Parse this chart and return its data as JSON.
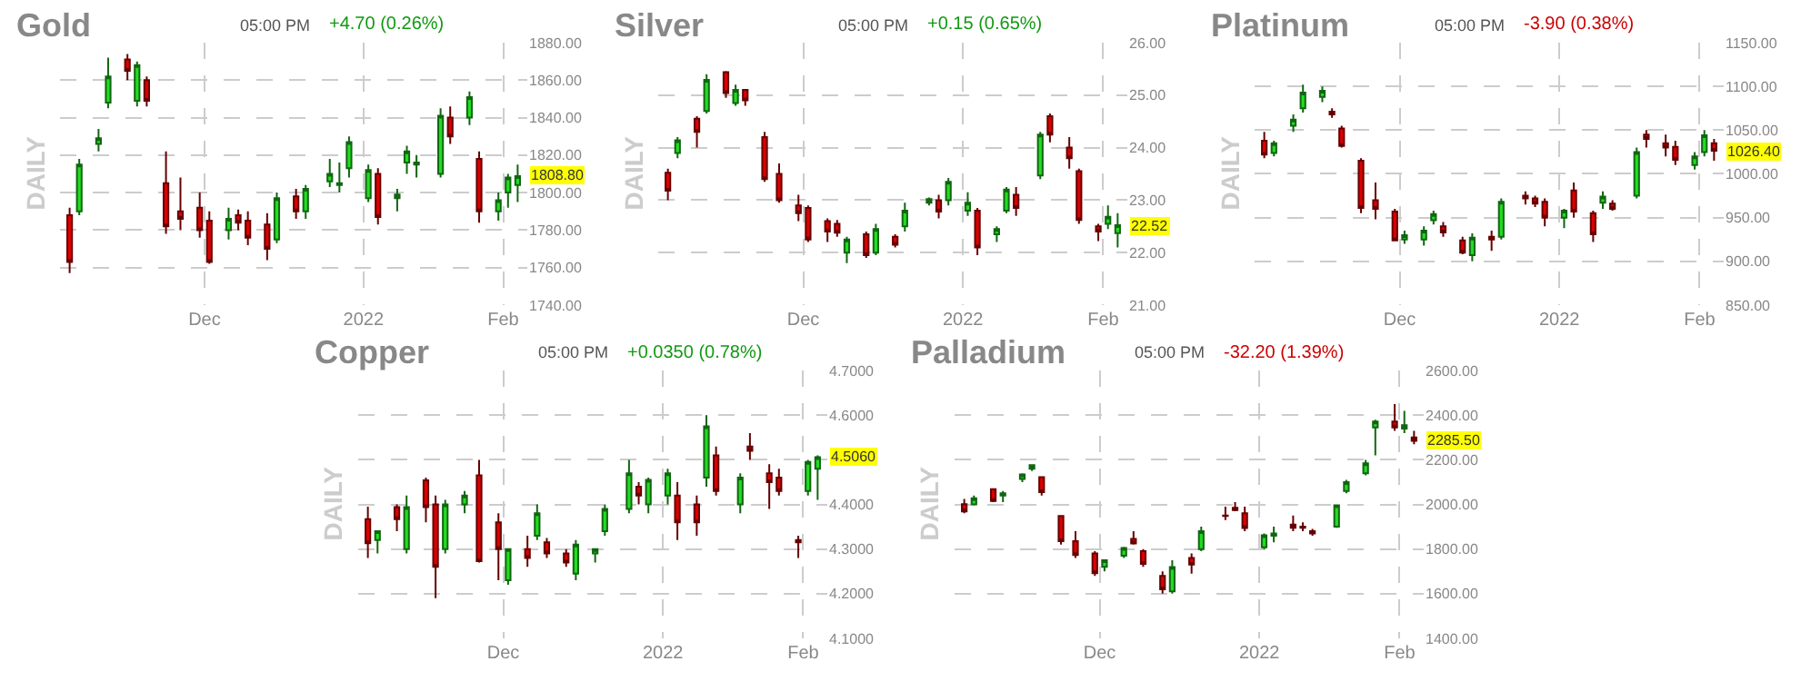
{
  "chart_data": [
    {
      "type": "candlestick",
      "title": "Gold",
      "ylabel": "DAILY",
      "grid": true,
      "annotations": [
        "05:00 PM",
        "+4.70 (0.26%)",
        {
          "text": "1808.80",
          "y": 1808.8
        }
      ],
      "x": [
        "2021-11-03",
        "2021-11-05",
        "2021-11-09",
        "2021-11-11",
        "2021-11-15",
        "2021-11-17",
        "2021-11-19",
        "2021-11-23",
        "2021-11-26",
        "2021-11-30",
        "2021-12-02",
        "2021-12-06",
        "2021-12-08",
        "2021-12-10",
        "2021-12-14",
        "2021-12-16",
        "2021-12-20",
        "2021-12-22",
        "2021-12-27",
        "2021-12-29",
        "2021-12-31",
        "2022-01-04",
        "2022-01-06",
        "2022-01-10",
        "2022-01-12",
        "2022-01-14",
        "2022-01-19",
        "2022-01-21",
        "2022-01-25",
        "2022-01-27",
        "2022-01-31",
        "2022-02-02",
        "2022-02-04"
      ],
      "xlim": [
        "2021-11-01",
        "2022-02-06"
      ],
      "xticks": [
        {
          "value": "2021-12-01",
          "label": "Dec"
        },
        {
          "value": "2022-01-03",
          "label": "2022"
        },
        {
          "value": "2022-02-01",
          "label": "Feb"
        }
      ],
      "ylim": [
        1740,
        1880
      ],
      "yticks": [
        {
          "value": 1740,
          "label": "1740.00"
        },
        {
          "value": 1760,
          "label": "1760.00"
        },
        {
          "value": 1780,
          "label": "1780.00"
        },
        {
          "value": 1800,
          "label": "1800.00"
        },
        {
          "value": 1820,
          "label": "1820.00"
        },
        {
          "value": 1840,
          "label": "1840.00"
        },
        {
          "value": 1860,
          "label": "1860.00"
        },
        {
          "value": 1880,
          "label": "1880.00"
        }
      ],
      "ohlc": [
        [
          1788,
          1792,
          1757,
          1763
        ],
        [
          1790,
          1818,
          1788,
          1815
        ],
        [
          1826,
          1834,
          1822,
          1829
        ],
        [
          1848,
          1872,
          1845,
          1862
        ],
        [
          1871,
          1874,
          1860,
          1865
        ],
        [
          1849,
          1870,
          1846,
          1868
        ],
        [
          1860,
          1862,
          1846,
          1849
        ],
        [
          1805,
          1822,
          1778,
          1782
        ],
        [
          1790,
          1808,
          1780,
          1786
        ],
        [
          1792,
          1800,
          1776,
          1780
        ],
        [
          1785,
          1790,
          1762,
          1763
        ],
        [
          1780,
          1792,
          1775,
          1786
        ],
        [
          1788,
          1791,
          1780,
          1784
        ],
        [
          1785,
          1790,
          1772,
          1776
        ],
        [
          1783,
          1789,
          1764,
          1770
        ],
        [
          1775,
          1800,
          1773,
          1797
        ],
        [
          1798,
          1802,
          1786,
          1790
        ],
        [
          1790,
          1804,
          1786,
          1802
        ],
        [
          1806,
          1818,
          1803,
          1810
        ],
        [
          1804,
          1816,
          1800,
          1805
        ],
        [
          1813,
          1830,
          1808,
          1827
        ],
        [
          1797,
          1815,
          1795,
          1812
        ],
        [
          1810,
          1813,
          1783,
          1787
        ],
        [
          1797,
          1802,
          1790,
          1799
        ],
        [
          1816,
          1825,
          1810,
          1822
        ],
        [
          1815,
          1820,
          1808,
          1816
        ],
        [
          1810,
          1845,
          1808,
          1841
        ],
        [
          1840,
          1846,
          1826,
          1830
        ],
        [
          1840,
          1854,
          1836,
          1851
        ],
        [
          1818,
          1822,
          1784,
          1790
        ],
        [
          1790,
          1800,
          1785,
          1796
        ],
        [
          1800,
          1810,
          1792,
          1808
        ],
        [
          1804,
          1815,
          1795,
          1808.8
        ]
      ]
    },
    {
      "type": "candlestick",
      "title": "Silver",
      "ylabel": "DAILY",
      "grid": true,
      "annotations": [
        "05:00 PM",
        "+0.15 (0.65%)",
        {
          "text": "22.52",
          "y": 22.52
        }
      ],
      "x": [
        "2021-11-03",
        "2021-11-05",
        "2021-11-09",
        "2021-11-11",
        "2021-11-15",
        "2021-11-17",
        "2021-11-19",
        "2021-11-23",
        "2021-11-26",
        "2021-11-30",
        "2021-12-02",
        "2021-12-06",
        "2021-12-08",
        "2021-12-10",
        "2021-12-14",
        "2021-12-16",
        "2021-12-20",
        "2021-12-22",
        "2021-12-27",
        "2021-12-29",
        "2021-12-31",
        "2022-01-04",
        "2022-01-06",
        "2022-01-10",
        "2022-01-12",
        "2022-01-14",
        "2022-01-19",
        "2022-01-21",
        "2022-01-25",
        "2022-01-27",
        "2022-01-31",
        "2022-02-02",
        "2022-02-04"
      ],
      "xlim": [
        "2021-11-01",
        "2022-02-06"
      ],
      "xticks": [
        {
          "value": "2021-12-01",
          "label": "Dec"
        },
        {
          "value": "2022-01-03",
          "label": "2022"
        },
        {
          "value": "2022-02-01",
          "label": "Feb"
        }
      ],
      "ylim": [
        21,
        26
      ],
      "yticks": [
        {
          "value": 21,
          "label": "21.00"
        },
        {
          "value": 22,
          "label": "22.00"
        },
        {
          "value": 23,
          "label": "23.00"
        },
        {
          "value": 24,
          "label": "24.00"
        },
        {
          "value": 25,
          "label": "25.00"
        },
        {
          "value": 26,
          "label": "26.00"
        }
      ],
      "ohlc": [
        [
          23.52,
          23.6,
          23.0,
          23.18
        ],
        [
          23.9,
          24.2,
          23.8,
          24.14
        ],
        [
          24.55,
          24.6,
          24.0,
          24.3
        ],
        [
          24.7,
          25.4,
          24.65,
          25.29
        ],
        [
          25.44,
          25.46,
          24.95,
          25.04
        ],
        [
          24.85,
          25.2,
          24.8,
          25.1
        ],
        [
          25.1,
          25.12,
          24.8,
          24.9
        ],
        [
          24.2,
          24.3,
          23.35,
          23.4
        ],
        [
          23.5,
          23.7,
          22.95,
          23.0
        ],
        [
          22.9,
          23.1,
          22.6,
          22.75
        ],
        [
          22.85,
          22.9,
          22.2,
          22.25
        ],
        [
          22.6,
          22.65,
          22.2,
          22.4
        ],
        [
          22.55,
          22.62,
          22.3,
          22.38
        ],
        [
          22.0,
          22.3,
          21.8,
          22.25
        ],
        [
          22.35,
          22.4,
          21.9,
          21.95
        ],
        [
          22.0,
          22.55,
          21.95,
          22.45
        ],
        [
          22.3,
          22.35,
          22.1,
          22.15
        ],
        [
          22.5,
          22.95,
          22.4,
          22.8
        ],
        [
          22.95,
          23.05,
          22.9,
          23.02
        ],
        [
          23.0,
          23.1,
          22.65,
          22.78
        ],
        [
          23.0,
          23.42,
          22.9,
          23.35
        ],
        [
          22.8,
          23.15,
          22.7,
          22.95
        ],
        [
          22.8,
          22.85,
          21.95,
          22.1
        ],
        [
          22.35,
          22.5,
          22.2,
          22.45
        ],
        [
          22.8,
          23.25,
          22.75,
          23.2
        ],
        [
          23.1,
          23.25,
          22.7,
          22.85
        ],
        [
          23.47,
          24.3,
          23.4,
          24.25
        ],
        [
          24.6,
          24.65,
          24.1,
          24.25
        ],
        [
          24.0,
          24.2,
          23.6,
          23.8
        ],
        [
          23.55,
          23.6,
          22.55,
          22.62
        ],
        [
          22.5,
          22.55,
          22.22,
          22.4
        ],
        [
          22.55,
          22.9,
          22.45,
          22.68
        ],
        [
          22.37,
          22.75,
          22.1,
          22.52
        ]
      ]
    },
    {
      "type": "candlestick",
      "title": "Platinum",
      "ylabel": "DAILY",
      "grid": true,
      "annotations": [
        "05:00 PM",
        "-3.90 (0.38%)",
        {
          "text": "1026.40",
          "y": 1026.4
        }
      ],
      "x": [
        "2021-11-03",
        "2021-11-05",
        "2021-11-09",
        "2021-11-11",
        "2021-11-15",
        "2021-11-17",
        "2021-11-19",
        "2021-11-23",
        "2021-11-26",
        "2021-11-30",
        "2021-12-02",
        "2021-12-06",
        "2021-12-08",
        "2021-12-10",
        "2021-12-14",
        "2021-12-16",
        "2021-12-20",
        "2021-12-22",
        "2021-12-27",
        "2021-12-29",
        "2021-12-31",
        "2022-01-04",
        "2022-01-06",
        "2022-01-10",
        "2022-01-12",
        "2022-01-14",
        "2022-01-19",
        "2022-01-21",
        "2022-01-25",
        "2022-01-27",
        "2022-01-31",
        "2022-02-02",
        "2022-02-04"
      ],
      "xlim": [
        "2021-11-01",
        "2022-02-06"
      ],
      "xticks": [
        {
          "value": "2021-12-01",
          "label": "Dec"
        },
        {
          "value": "2022-01-03",
          "label": "2022"
        },
        {
          "value": "2022-02-01",
          "label": "Feb"
        }
      ],
      "ylim": [
        850,
        1150
      ],
      "yticks": [
        {
          "value": 850,
          "label": "850.00"
        },
        {
          "value": 900,
          "label": "900.00"
        },
        {
          "value": 950,
          "label": "950.00"
        },
        {
          "value": 1000,
          "label": "1000.00"
        },
        {
          "value": 1050,
          "label": "1050.00"
        },
        {
          "value": 1100,
          "label": "1100.00"
        },
        {
          "value": 1150,
          "label": "1150.00"
        }
      ],
      "ohlc": [
        [
          1038,
          1048,
          1018,
          1022
        ],
        [
          1024,
          1038,
          1020,
          1035
        ],
        [
          1055,
          1068,
          1048,
          1062
        ],
        [
          1075,
          1102,
          1070,
          1093
        ],
        [
          1088,
          1100,
          1082,
          1095
        ],
        [
          1071,
          1075,
          1064,
          1068
        ],
        [
          1052,
          1055,
          1030,
          1032
        ],
        [
          1015,
          1018,
          955,
          961
        ],
        [
          970,
          990,
          948,
          960
        ],
        [
          957,
          960,
          923,
          924
        ],
        [
          925,
          935,
          920,
          930
        ],
        [
          925,
          940,
          918,
          935
        ],
        [
          947,
          958,
          942,
          954
        ],
        [
          940,
          945,
          928,
          933
        ],
        [
          924,
          928,
          908,
          910
        ],
        [
          907,
          932,
          900,
          927
        ],
        [
          928,
          935,
          912,
          925
        ],
        [
          928,
          972,
          925,
          968
        ],
        [
          975,
          980,
          965,
          972
        ],
        [
          972,
          975,
          962,
          966
        ],
        [
          968,
          972,
          940,
          950
        ],
        [
          950,
          960,
          938,
          958
        ],
        [
          981,
          990,
          950,
          957
        ],
        [
          955,
          958,
          922,
          931
        ],
        [
          967,
          980,
          960,
          974
        ],
        [
          966,
          970,
          958,
          960
        ],
        [
          975,
          1030,
          972,
          1025
        ],
        [
          1045,
          1050,
          1030,
          1040
        ],
        [
          1035,
          1045,
          1020,
          1030
        ],
        [
          1031,
          1038,
          1010,
          1016
        ],
        [
          1010,
          1025,
          1005,
          1020
        ],
        [
          1025,
          1050,
          1020,
          1044
        ],
        [
          1035,
          1040,
          1015,
          1026.4
        ]
      ]
    },
    {
      "type": "candlestick",
      "title": "Copper",
      "ylabel": "DAILY",
      "grid": true,
      "annotations": [
        "05:00 PM",
        "+0.0350 (0.78%)",
        {
          "text": "4.5060",
          "y": 4.506
        }
      ],
      "x": [
        "2021-11-03",
        "2021-11-05",
        "2021-11-09",
        "2021-11-11",
        "2021-11-15",
        "2021-11-17",
        "2021-11-19",
        "2021-11-23",
        "2021-11-26",
        "2021-11-30",
        "2021-12-02",
        "2021-12-06",
        "2021-12-08",
        "2021-12-10",
        "2021-12-14",
        "2021-12-16",
        "2021-12-20",
        "2021-12-22",
        "2021-12-27",
        "2021-12-29",
        "2021-12-31",
        "2022-01-04",
        "2022-01-06",
        "2022-01-10",
        "2022-01-12",
        "2022-01-14",
        "2022-01-19",
        "2022-01-21",
        "2022-01-25",
        "2022-01-27",
        "2022-01-31",
        "2022-02-02",
        "2022-02-04"
      ],
      "xlim": [
        "2021-11-01",
        "2022-02-06"
      ],
      "xticks": [
        {
          "value": "2021-12-01",
          "label": "Dec"
        },
        {
          "value": "2022-01-03",
          "label": "2022"
        },
        {
          "value": "2022-02-01",
          "label": "Feb"
        }
      ],
      "ylim": [
        4.1,
        4.7
      ],
      "yticks": [
        {
          "value": 4.1,
          "label": "4.1000"
        },
        {
          "value": 4.2,
          "label": "4.2000"
        },
        {
          "value": 4.3,
          "label": "4.3000"
        },
        {
          "value": 4.4,
          "label": "4.4000"
        },
        {
          "value": 4.5,
          "label": null
        },
        {
          "value": 4.6,
          "label": "4.6000"
        },
        {
          "value": 4.7,
          "label": "4.7000"
        }
      ],
      "ohlc": [
        [
          4.367,
          4.395,
          4.28,
          4.313
        ],
        [
          4.32,
          4.34,
          4.29,
          4.34
        ],
        [
          4.394,
          4.4,
          4.34,
          4.367
        ],
        [
          4.3,
          4.42,
          4.29,
          4.394
        ],
        [
          4.454,
          4.46,
          4.36,
          4.394
        ],
        [
          4.4,
          4.42,
          4.19,
          4.26
        ],
        [
          4.3,
          4.41,
          4.29,
          4.4
        ],
        [
          4.4,
          4.43,
          4.38,
          4.42
        ],
        [
          4.465,
          4.5,
          4.27,
          4.273
        ],
        [
          4.36,
          4.38,
          4.23,
          4.3
        ],
        [
          4.23,
          4.3,
          4.22,
          4.3
        ],
        [
          4.3,
          4.33,
          4.26,
          4.28
        ],
        [
          4.33,
          4.4,
          4.32,
          4.38
        ],
        [
          4.315,
          4.325,
          4.28,
          4.29
        ],
        [
          4.29,
          4.3,
          4.26,
          4.27
        ],
        [
          4.245,
          4.32,
          4.23,
          4.31
        ],
        [
          4.29,
          4.3,
          4.27,
          4.3
        ],
        [
          4.34,
          4.4,
          4.33,
          4.39
        ],
        [
          4.39,
          4.5,
          4.38,
          4.47
        ],
        [
          4.44,
          4.45,
          4.4,
          4.42
        ],
        [
          4.4,
          4.46,
          4.38,
          4.455
        ],
        [
          4.42,
          4.48,
          4.4,
          4.47
        ],
        [
          4.42,
          4.45,
          4.32,
          4.36
        ],
        [
          4.4,
          4.42,
          4.33,
          4.36
        ],
        [
          4.46,
          4.6,
          4.44,
          4.575
        ],
        [
          4.51,
          4.53,
          4.42,
          4.43
        ],
        [
          4.4,
          4.47,
          4.38,
          4.46
        ],
        [
          4.53,
          4.56,
          4.5,
          4.52
        ],
        [
          4.47,
          4.49,
          4.39,
          4.45
        ],
        [
          4.46,
          4.48,
          4.42,
          4.43
        ],
        [
          4.32,
          4.33,
          4.28,
          4.315
        ],
        [
          4.43,
          4.5,
          4.42,
          4.495
        ],
        [
          4.48,
          4.51,
          4.41,
          4.506
        ]
      ]
    },
    {
      "type": "candlestick",
      "title": "Palladium",
      "ylabel": "DAILY",
      "grid": true,
      "annotations": [
        "05:00 PM",
        "-32.20 (1.39%)",
        {
          "text": "2285.50",
          "y": 2285.5
        }
      ],
      "x": [
        "2021-11-03",
        "2021-11-05",
        "2021-11-09",
        "2021-11-11",
        "2021-11-15",
        "2021-11-17",
        "2021-11-19",
        "2021-11-23",
        "2021-11-26",
        "2021-11-30",
        "2021-12-02",
        "2021-12-06",
        "2021-12-08",
        "2021-12-10",
        "2021-12-14",
        "2021-12-16",
        "2021-12-20",
        "2021-12-22",
        "2021-12-27",
        "2021-12-29",
        "2021-12-31",
        "2022-01-04",
        "2022-01-06",
        "2022-01-10",
        "2022-01-12",
        "2022-01-14",
        "2022-01-19",
        "2022-01-21",
        "2022-01-25",
        "2022-01-27",
        "2022-01-31",
        "2022-02-02",
        "2022-02-04"
      ],
      "xlim": [
        "2021-11-01",
        "2022-02-06"
      ],
      "xticks": [
        {
          "value": "2021-12-01",
          "label": "Dec"
        },
        {
          "value": "2022-01-03",
          "label": "2022"
        },
        {
          "value": "2022-02-01",
          "label": "Feb"
        }
      ],
      "ylim": [
        1400,
        2600
      ],
      "yticks": [
        {
          "value": 1400,
          "label": "1400.00"
        },
        {
          "value": 1600,
          "label": "1600.00"
        },
        {
          "value": 1800,
          "label": "1800.00"
        },
        {
          "value": 2000,
          "label": "2000.00"
        },
        {
          "value": 2200,
          "label": "2200.00"
        },
        {
          "value": 2400,
          "label": "2400.00"
        },
        {
          "value": 2600,
          "label": "2600.00"
        }
      ],
      "ohlc": [
        [
          2001,
          2025,
          1960,
          1969
        ],
        [
          2000,
          2040,
          1995,
          2028
        ],
        [
          2068,
          2072,
          2010,
          2015
        ],
        [
          2040,
          2060,
          2010,
          2050
        ],
        [
          2114,
          2140,
          2100,
          2135
        ],
        [
          2160,
          2180,
          2150,
          2176
        ],
        [
          2122,
          2125,
          2040,
          2055
        ],
        [
          1948,
          1950,
          1820,
          1835
        ],
        [
          1835,
          1880,
          1760,
          1773
        ],
        [
          1780,
          1790,
          1680,
          1692
        ],
        [
          1720,
          1750,
          1700,
          1750
        ],
        [
          1770,
          1810,
          1760,
          1805
        ],
        [
          1845,
          1880,
          1820,
          1825
        ],
        [
          1790,
          1800,
          1720,
          1733
        ],
        [
          1680,
          1700,
          1600,
          1620
        ],
        [
          1610,
          1750,
          1600,
          1719
        ],
        [
          1760,
          1780,
          1690,
          1730
        ],
        [
          1800,
          1900,
          1790,
          1880
        ],
        [
          1950,
          1990,
          1930,
          1948
        ],
        [
          1985,
          2010,
          1970,
          1975
        ],
        [
          1960,
          1990,
          1880,
          1894
        ],
        [
          1808,
          1870,
          1800,
          1862
        ],
        [
          1860,
          1900,
          1830,
          1870
        ],
        [
          1910,
          1950,
          1880,
          1895
        ],
        [
          1900,
          1920,
          1880,
          1895
        ],
        [
          1880,
          1890,
          1860,
          1870
        ],
        [
          1900,
          2000,
          1895,
          1996
        ],
        [
          2060,
          2110,
          2050,
          2100
        ],
        [
          2140,
          2200,
          2130,
          2184
        ],
        [
          2345,
          2380,
          2220,
          2372
        ],
        [
          2372,
          2450,
          2330,
          2345
        ],
        [
          2340,
          2420,
          2320,
          2355
        ],
        [
          2300,
          2330,
          2270,
          2285.5
        ]
      ]
    }
  ]
}
